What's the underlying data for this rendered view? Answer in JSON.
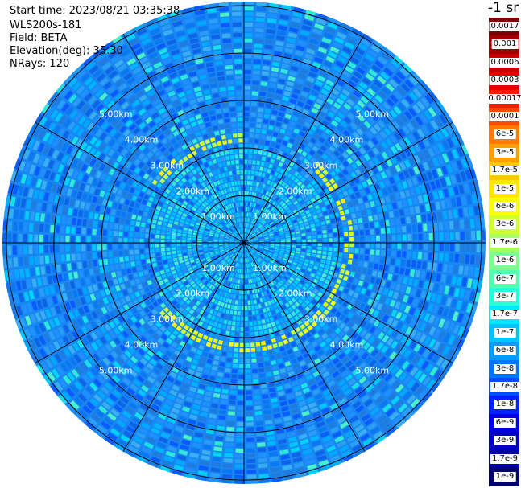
{
  "header": {
    "start_time": "Start time: 2023/08/21 03:35:38",
    "device": "WLS200s-181",
    "field": "Field: BETA",
    "elevation": "Elevation(deg): 35.30",
    "nrays": "NRays: 120"
  },
  "colorbar": {
    "unit": "-1 sr",
    "labels": [
      "0.0017",
      "0.001",
      "0.0006",
      "0.0003",
      "0.00017",
      "0.0001",
      "6e-5",
      "3e-5",
      "1.7e-5",
      "1e-5",
      "6e-6",
      "3e-6",
      "1.7e-6",
      "1e-6",
      "6e-7",
      "3e-7",
      "1.7e-7",
      "1e-7",
      "6e-8",
      "3e-8",
      "1.7e-8",
      "1e-8",
      "6e-9",
      "3e-9",
      "1.7e-9",
      "1e-9"
    ],
    "colors": [
      "#7f0000",
      "#a00000",
      "#c80000",
      "#e60000",
      "#ff1a00",
      "#ff4a00",
      "#ff7a00",
      "#ffa000",
      "#ffc800",
      "#ffe600",
      "#f8ff00",
      "#d0ff30",
      "#a8ff60",
      "#7cff8c",
      "#50ffb0",
      "#28ffd8",
      "#00e8ff",
      "#00c4ff",
      "#009cff",
      "#0074ff",
      "#004cff",
      "#0020ff",
      "#0000e6",
      "#0000c0",
      "#00009a",
      "#000070"
    ]
  },
  "chart_data": {
    "type": "heatmap",
    "projection": "polar-ppi",
    "field": "BETA",
    "elevation_deg": 35.3,
    "n_rays": 120,
    "range_ring_labels": [
      "1.00km",
      "2.00km",
      "3.00km",
      "4.00km",
      "5.00km"
    ],
    "range_rings_km": [
      1,
      2,
      3,
      4,
      5
    ],
    "max_range_km": 5.5,
    "spoke_angles_deg": [
      0,
      30,
      60,
      90,
      120,
      150,
      180,
      210,
      240,
      270,
      300,
      330
    ],
    "dominant_band": {
      "min": "1.7e-8",
      "max": "1e-7",
      "colors": "blue"
    },
    "aerosol_layer": {
      "range_km": [
        2.2,
        2.5
      ],
      "value_range": [
        "1.7e-6",
        "1e-5"
      ],
      "location": "ring around center, strongest south and east"
    },
    "near_field": {
      "range_km": [
        0,
        2.0
      ],
      "value_range": [
        "1e-7",
        "3e-7"
      ]
    }
  }
}
